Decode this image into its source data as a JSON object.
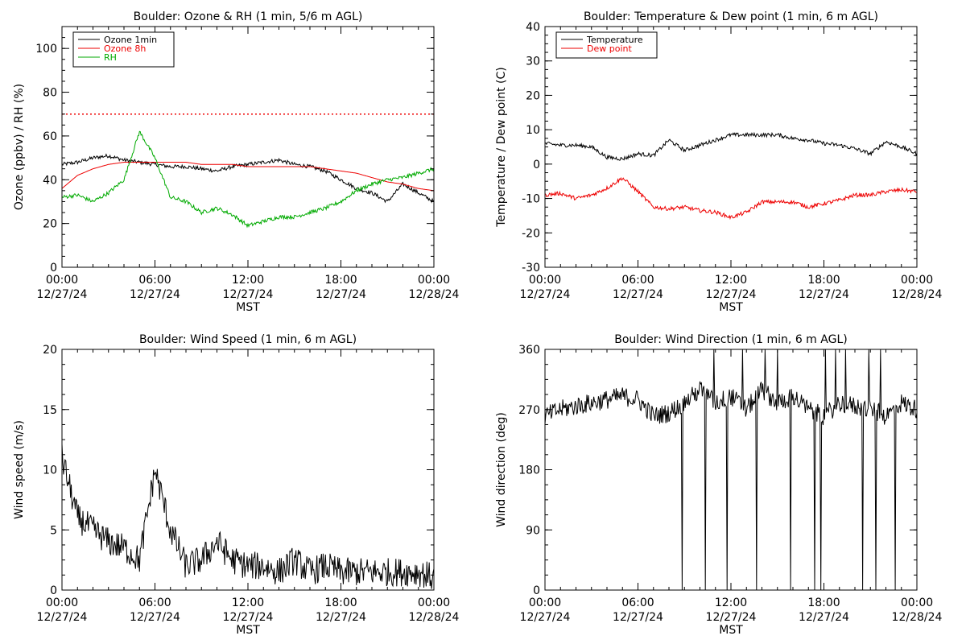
{
  "colors": {
    "black": "#000000",
    "red": "#ee0000",
    "green": "#00aa00",
    "background": "#ffffff"
  },
  "chart_data": [
    {
      "type": "line",
      "title": "Boulder: Ozone & RH (1 min, 5/6 m AGL)",
      "xlabel": "MST",
      "ylabel": "Ozone (ppbv) / RH (%)",
      "xlim": [
        "2024-12-27 00:00",
        "2024-12-28 00:00"
      ],
      "ylim": [
        0,
        110
      ],
      "yticks": [
        0,
        20,
        40,
        60,
        80,
        100
      ],
      "xtick_labels": [
        {
          "time": "00:00",
          "date": "12/27/24"
        },
        {
          "time": "06:00",
          "date": "12/27/24"
        },
        {
          "time": "12:00",
          "date": "12/27/24"
        },
        {
          "time": "18:00",
          "date": "12/27/24"
        },
        {
          "time": "00:00",
          "date": "12/28/24"
        }
      ],
      "x": [
        "00:00",
        "01:00",
        "02:00",
        "03:00",
        "04:00",
        "05:00",
        "06:00",
        "07:00",
        "08:00",
        "09:00",
        "10:00",
        "11:00",
        "12:00",
        "13:00",
        "14:00",
        "15:00",
        "16:00",
        "17:00",
        "18:00",
        "19:00",
        "20:00",
        "21:00",
        "22:00",
        "23:00",
        "24:00"
      ],
      "series": [
        {
          "name": "Ozone 1min",
          "color": "black",
          "values": [
            47,
            48,
            50,
            51,
            49,
            48,
            47,
            46,
            46,
            45,
            44,
            46,
            47,
            48,
            49,
            47,
            46,
            44,
            40,
            36,
            34,
            30,
            38,
            34,
            30
          ]
        },
        {
          "name": "Ozone 8h",
          "color": "red",
          "values": [
            36,
            42,
            45,
            47,
            48,
            48,
            48,
            48,
            48,
            47,
            47,
            47,
            46,
            46,
            46,
            46,
            46,
            45,
            44,
            43,
            41,
            39,
            38,
            36,
            35
          ]
        },
        {
          "name": "RH",
          "color": "green",
          "values": [
            32,
            33,
            30,
            34,
            40,
            62,
            50,
            32,
            30,
            25,
            27,
            24,
            19,
            21,
            23,
            23,
            25,
            27,
            30,
            35,
            38,
            40,
            41,
            43,
            45
          ]
        }
      ],
      "reference_lines": [
        {
          "y": 70,
          "color": "red",
          "style": "dotted"
        }
      ],
      "legend_position": "top-left"
    },
    {
      "type": "line",
      "title": "Boulder: Temperature & Dew point (1 min, 6 m AGL)",
      "xlabel": "MST",
      "ylabel": "Temperature / Dew point (C)",
      "xlim": [
        "2024-12-27 00:00",
        "2024-12-28 00:00"
      ],
      "ylim": [
        -30,
        40
      ],
      "yticks": [
        -30,
        -20,
        -10,
        0,
        10,
        20,
        30,
        40
      ],
      "xtick_labels": [
        {
          "time": "00:00",
          "date": "12/27/24"
        },
        {
          "time": "06:00",
          "date": "12/27/24"
        },
        {
          "time": "12:00",
          "date": "12/27/24"
        },
        {
          "time": "18:00",
          "date": "12/27/24"
        },
        {
          "time": "00:00",
          "date": "12/28/24"
        }
      ],
      "x": [
        "00:00",
        "01:00",
        "02:00",
        "03:00",
        "04:00",
        "05:00",
        "06:00",
        "07:00",
        "08:00",
        "09:00",
        "10:00",
        "11:00",
        "12:00",
        "13:00",
        "14:00",
        "15:00",
        "16:00",
        "17:00",
        "18:00",
        "19:00",
        "20:00",
        "21:00",
        "22:00",
        "23:00",
        "24:00"
      ],
      "series": [
        {
          "name": "Temperature",
          "color": "black",
          "values": [
            6,
            5.5,
            5.5,
            5,
            2,
            1.5,
            3,
            2.5,
            7,
            4,
            5.5,
            7,
            8.5,
            8.5,
            8.5,
            8.5,
            7.5,
            7,
            6,
            5.5,
            4.5,
            3,
            6.5,
            5,
            3
          ]
        },
        {
          "name": "Dew point",
          "color": "red",
          "values": [
            -9,
            -8.5,
            -10,
            -9,
            -7,
            -4,
            -8,
            -12.5,
            -13,
            -12.5,
            -13.5,
            -14,
            -15.5,
            -14,
            -11,
            -11,
            -11,
            -12.5,
            -11.5,
            -10.5,
            -9,
            -9,
            -8,
            -7.5,
            -8
          ]
        }
      ],
      "legend_position": "top-left"
    },
    {
      "type": "line",
      "title": "Boulder: Wind Speed (1 min, 6 m AGL)",
      "xlabel": "MST",
      "ylabel": "Wind speed (m/s)",
      "xlim": [
        "2024-12-27 00:00",
        "2024-12-28 00:00"
      ],
      "ylim": [
        0,
        20
      ],
      "yticks": [
        0,
        5,
        10,
        15,
        20
      ],
      "xtick_labels": [
        {
          "time": "00:00",
          "date": "12/27/24"
        },
        {
          "time": "06:00",
          "date": "12/27/24"
        },
        {
          "time": "12:00",
          "date": "12/27/24"
        },
        {
          "time": "18:00",
          "date": "12/27/24"
        },
        {
          "time": "00:00",
          "date": "12/28/24"
        }
      ],
      "x": [
        "00:00",
        "01:00",
        "02:00",
        "03:00",
        "04:00",
        "05:00",
        "06:00",
        "07:00",
        "08:00",
        "09:00",
        "10:00",
        "11:00",
        "12:00",
        "13:00",
        "14:00",
        "15:00",
        "16:00",
        "17:00",
        "18:00",
        "19:00",
        "20:00",
        "21:00",
        "22:00",
        "23:00",
        "24:00"
      ],
      "series": [
        {
          "name": "",
          "color": "black",
          "values": [
            11,
            6,
            5,
            4,
            3.5,
            2.5,
            10,
            5,
            2,
            2.5,
            4,
            2.5,
            2,
            2,
            1.5,
            2.5,
            1.5,
            2,
            1.5,
            1.5,
            1.5,
            1.5,
            1.5,
            1.5,
            1
          ]
        }
      ]
    },
    {
      "type": "line",
      "title": "Boulder: Wind Direction (1 min, 6 m AGL)",
      "xlabel": "MST",
      "ylabel": "Wind direction (deg)",
      "xlim": [
        "2024-12-27 00:00",
        "2024-12-28 00:00"
      ],
      "ylim": [
        0,
        360
      ],
      "yticks": [
        0,
        90,
        180,
        270,
        360
      ],
      "xtick_labels": [
        {
          "time": "00:00",
          "date": "12/27/24"
        },
        {
          "time": "06:00",
          "date": "12/27/24"
        },
        {
          "time": "12:00",
          "date": "12/27/24"
        },
        {
          "time": "18:00",
          "date": "12/27/24"
        },
        {
          "time": "00:00",
          "date": "12/28/24"
        }
      ],
      "x": [
        "00:00",
        "01:00",
        "02:00",
        "03:00",
        "04:00",
        "05:00",
        "06:00",
        "07:00",
        "08:00",
        "09:00",
        "10:00",
        "11:00",
        "12:00",
        "13:00",
        "14:00",
        "15:00",
        "16:00",
        "17:00",
        "18:00",
        "19:00",
        "20:00",
        "21:00",
        "22:00",
        "23:00",
        "24:00"
      ],
      "series": [
        {
          "name": "",
          "color": "black",
          "values": [
            260,
            270,
            275,
            280,
            285,
            290,
            285,
            260,
            265,
            280,
            300,
            280,
            290,
            270,
            300,
            280,
            290,
            270,
            260,
            280,
            275,
            270,
            260,
            280,
            270
          ]
        }
      ]
    }
  ]
}
